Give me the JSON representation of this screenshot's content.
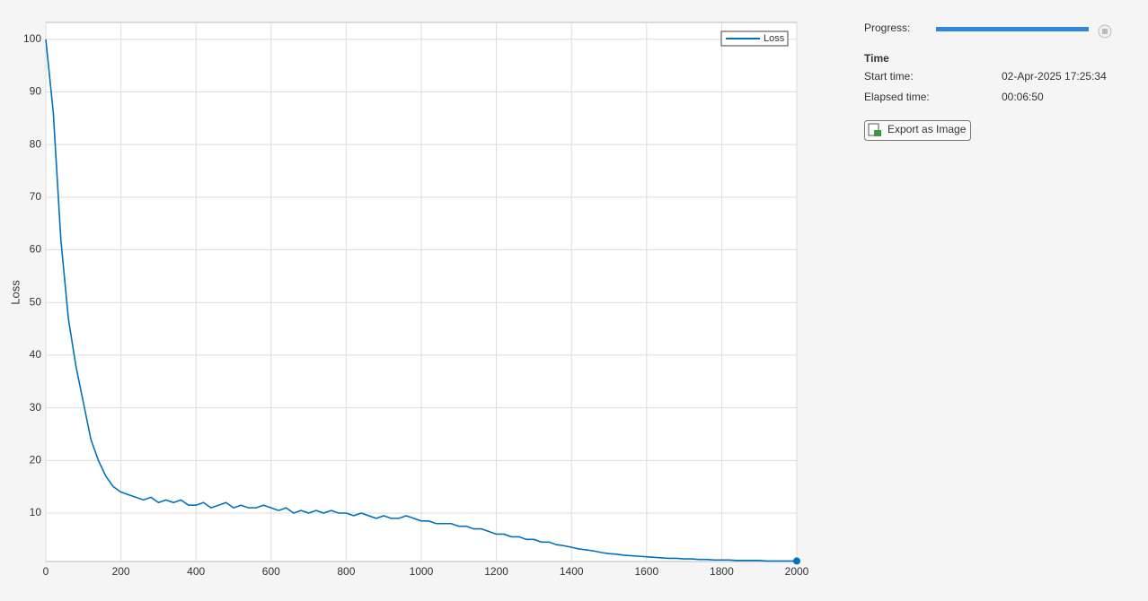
{
  "chart_data": {
    "type": "line",
    "ylabel": "Loss",
    "legend": "upper right",
    "grid": true,
    "x": [
      0,
      20,
      40,
      60,
      80,
      100,
      120,
      140,
      160,
      180,
      200,
      220,
      240,
      260,
      280,
      300,
      320,
      340,
      360,
      380,
      400,
      420,
      440,
      460,
      480,
      500,
      520,
      540,
      560,
      580,
      600,
      620,
      640,
      660,
      680,
      700,
      720,
      740,
      760,
      780,
      800,
      820,
      840,
      860,
      880,
      900,
      920,
      940,
      960,
      980,
      1000,
      1020,
      1040,
      1060,
      1080,
      1100,
      1120,
      1140,
      1160,
      1180,
      1200,
      1220,
      1240,
      1260,
      1280,
      1300,
      1320,
      1340,
      1360,
      1380,
      1400,
      1420,
      1440,
      1460,
      1480,
      1500,
      1520,
      1540,
      1560,
      1580,
      1600,
      1620,
      1640,
      1660,
      1680,
      1700,
      1720,
      1740,
      1760,
      1780,
      1800,
      1820,
      1840,
      1860,
      1880,
      1900,
      1920,
      1940,
      1960,
      1980,
      2000
    ],
    "series": [
      {
        "name": "Loss",
        "color": "#0072bd",
        "values": [
          100,
          86,
          62,
          47,
          38,
          31,
          24,
          20,
          17,
          15,
          14,
          13.5,
          13,
          12.5,
          13,
          12,
          12.5,
          12,
          12.5,
          11.5,
          11.5,
          12,
          11,
          11.5,
          12,
          11,
          11.5,
          11,
          11,
          11.5,
          11,
          10.5,
          11,
          10,
          10.5,
          10,
          10.5,
          10,
          10.5,
          10,
          10,
          9.5,
          10,
          9.5,
          9,
          9.5,
          9,
          9,
          9.5,
          9,
          8.5,
          8.5,
          8,
          8,
          8,
          7.5,
          7.5,
          7,
          7,
          6.5,
          6,
          6,
          5.5,
          5.5,
          5,
          5,
          4.5,
          4.5,
          4,
          3.8,
          3.5,
          3.2,
          3,
          2.8,
          2.5,
          2.3,
          2.2,
          2,
          1.9,
          1.8,
          1.7,
          1.6,
          1.5,
          1.4,
          1.4,
          1.3,
          1.3,
          1.2,
          1.2,
          1.1,
          1.1,
          1.1,
          1,
          1,
          1,
          1,
          0.9,
          0.9,
          0.9,
          0.9,
          0.9
        ]
      }
    ],
    "xlim": [
      0,
      2000
    ],
    "xticks": [
      0,
      200,
      400,
      600,
      800,
      1000,
      1200,
      1400,
      1600,
      1800,
      2000
    ],
    "ylim": [
      0.8,
      103.2
    ],
    "yticks": [
      10,
      20,
      30,
      40,
      50,
      60,
      70,
      80,
      90,
      100
    ]
  },
  "panel": {
    "progress_label": "Progress:",
    "section": "Time",
    "rows": [
      [
        "Start time:",
        "02-Apr-2025 17:25:34"
      ],
      [
        "Elapsed time:",
        "00:06:50"
      ]
    ],
    "button": "Export as Image"
  }
}
